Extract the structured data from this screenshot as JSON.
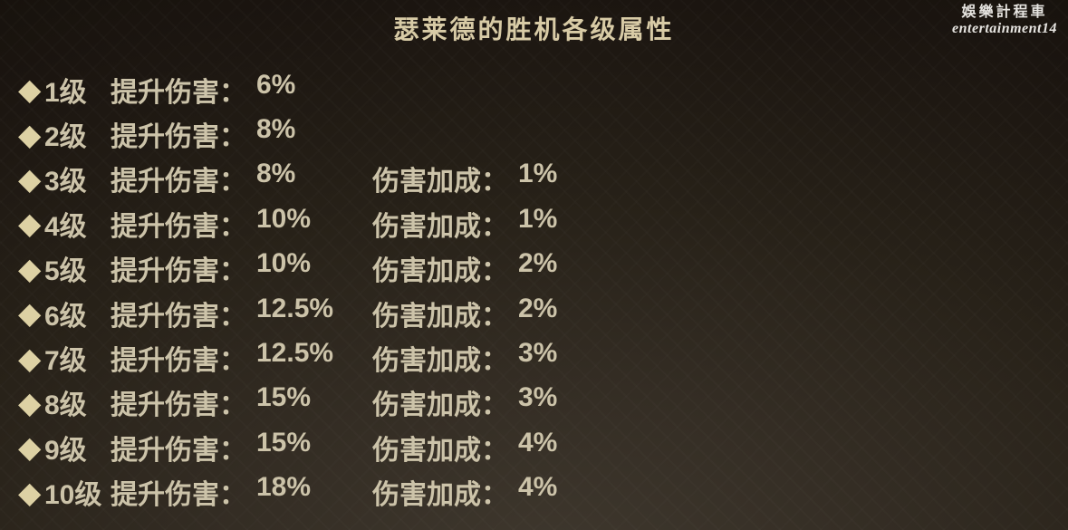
{
  "title": "瑟莱德的胜机各级属性",
  "watermark": {
    "line1": "娛樂計程車",
    "line2": "entertainment14"
  },
  "bullet": "◆",
  "labels": {
    "damage": "提升伤害：",
    "bonus": "伤害加成："
  },
  "rows": [
    {
      "level": "1级",
      "damage": "6%",
      "bonus_label": "",
      "bonus": ""
    },
    {
      "level": "2级",
      "damage": "8%",
      "bonus_label": "",
      "bonus": ""
    },
    {
      "level": "3级",
      "damage": "8%",
      "bonus_label": "伤害加成：",
      "bonus": "1%"
    },
    {
      "level": "4级",
      "damage": "10%",
      "bonus_label": "伤害加成：",
      "bonus": "1%"
    },
    {
      "level": "5级",
      "damage": "10%",
      "bonus_label": "伤害加成：",
      "bonus": "2%"
    },
    {
      "level": "6级",
      "damage": "12.5%",
      "bonus_label": "伤害加成：",
      "bonus": "2%"
    },
    {
      "level": "7级",
      "damage": "12.5%",
      "bonus_label": "伤害加成：",
      "bonus": "3%"
    },
    {
      "level": "8级",
      "damage": "15%",
      "bonus_label": "伤害加成：",
      "bonus": "3%"
    },
    {
      "level": "9级",
      "damage": "15%",
      "bonus_label": "伤害加成：",
      "bonus": "4%"
    },
    {
      "level": "10级",
      "damage": "18%",
      "bonus_label": "伤害加成：",
      "bonus": "4%"
    }
  ],
  "colors": {
    "background_dark": "#14100a",
    "background_light": "#3f382e",
    "row_text": "#ccc3a9",
    "diamond": "#ddd1a4",
    "title_text": "#d8cba6",
    "watermark_text": "#e6e4e0"
  }
}
